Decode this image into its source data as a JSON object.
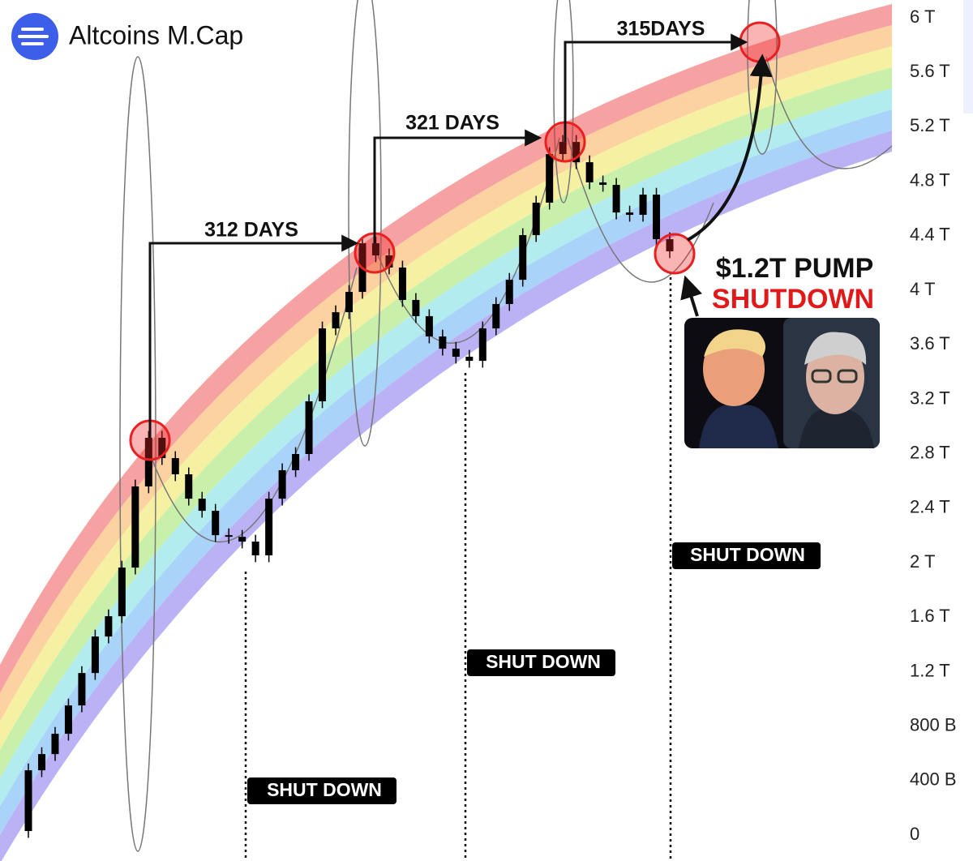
{
  "chart_data": {
    "type": "candlestick",
    "title": "Altcoins M.Cap",
    "color": "#000000",
    "categories": [
      null,
      null,
      null,
      null,
      null,
      null,
      null,
      null,
      null,
      null,
      null,
      null,
      null,
      null,
      null,
      null,
      null,
      null,
      null,
      null,
      null,
      null,
      null,
      null,
      null,
      null,
      null,
      null,
      null,
      null,
      null,
      null,
      null,
      null,
      null,
      null,
      null,
      null,
      null,
      null,
      null,
      null,
      null,
      null,
      null,
      null,
      null,
      null,
      null
    ],
    "open": [
      30,
      476,
      595,
      744,
      952,
      1190,
      1458,
      1607,
      1964,
      2560,
      2917,
      2768,
      2649,
      2470,
      2381,
      2202,
      2190,
      2155,
      2054,
      2470,
      2679,
      2798,
      3185,
      3720,
      3839,
      3988,
      4345,
      4256,
      4167,
      3929,
      3810,
      3661,
      3571,
      3512,
      3482,
      3720,
      3899,
      4077,
      4405,
      4643,
      5000,
      5089,
      4940,
      4792,
      4774,
      4571,
      4554,
      4702,
      4375
    ],
    "high": [
      526,
      645,
      794,
      1002,
      1240,
      1508,
      1657,
      2014,
      2610,
      2967,
      2967,
      2818,
      2699,
      2520,
      2431,
      2252,
      2240,
      2205,
      2520,
      2729,
      2848,
      3235,
      3770,
      3889,
      4038,
      4395,
      4395,
      4306,
      4217,
      3979,
      3860,
      3711,
      3621,
      3562,
      3770,
      3949,
      4127,
      4455,
      4693,
      5050,
      5139,
      5139,
      4990,
      4842,
      4824,
      4621,
      4752,
      4752,
      4425
    ],
    "low": [
      -20,
      426,
      545,
      694,
      902,
      1140,
      1408,
      1557,
      1914,
      2510,
      2718,
      2599,
      2420,
      2331,
      2152,
      2140,
      2105,
      2004,
      2004,
      2420,
      2629,
      2748,
      3135,
      3670,
      3789,
      3938,
      4206,
      4117,
      3879,
      3760,
      3611,
      3521,
      3462,
      3432,
      3432,
      3670,
      3849,
      4027,
      4355,
      4593,
      4950,
      4890,
      4742,
      4724,
      4521,
      4504,
      4504,
      4325,
      4236
    ],
    "close": [
      476,
      595,
      744,
      952,
      1190,
      1458,
      1607,
      1964,
      2560,
      2917,
      2768,
      2649,
      2470,
      2381,
      2202,
      2190,
      2155,
      2054,
      2470,
      2679,
      2798,
      3185,
      3720,
      3839,
      3988,
      4345,
      4256,
      4167,
      3929,
      3810,
      3661,
      3571,
      3512,
      3482,
      3720,
      3899,
      4077,
      4405,
      4643,
      5000,
      5089,
      4940,
      4792,
      4774,
      4571,
      4554,
      4702,
      4375,
      4286
    ],
    "ylim": [
      -190,
      6131
    ],
    "yticks": [
      {
        "value": 6000,
        "label": "6 T"
      },
      {
        "value": 5600,
        "label": "5.6 T"
      },
      {
        "value": 5200,
        "label": "5.2 T"
      },
      {
        "value": 4800,
        "label": "4.8 T"
      },
      {
        "value": 4400,
        "label": "4.4 T"
      },
      {
        "value": 4000,
        "label": "4 T"
      },
      {
        "value": 3600,
        "label": "3.6 T"
      },
      {
        "value": 3200,
        "label": "3.2 T"
      },
      {
        "value": 2800,
        "label": "2.8 T"
      },
      {
        "value": 2400,
        "label": "2.4 T"
      },
      {
        "value": 2000,
        "label": "2 T"
      },
      {
        "value": 1600,
        "label": "1.6 T"
      },
      {
        "value": 1200,
        "label": "1.2 T"
      },
      {
        "value": 800,
        "label": "800 B"
      },
      {
        "value": 400,
        "label": "400 B"
      },
      0
    ],
    "annotations": {
      "days": [
        "312 DAYS",
        "321 DAYS",
        "315DAYS"
      ],
      "shutdown": [
        "SHUT DOWN",
        "SHUT DOWN",
        "SHUT DOWN"
      ],
      "pump": "$1.2T PUMP",
      "pump_sub": "SHUTDOWN"
    }
  }
}
